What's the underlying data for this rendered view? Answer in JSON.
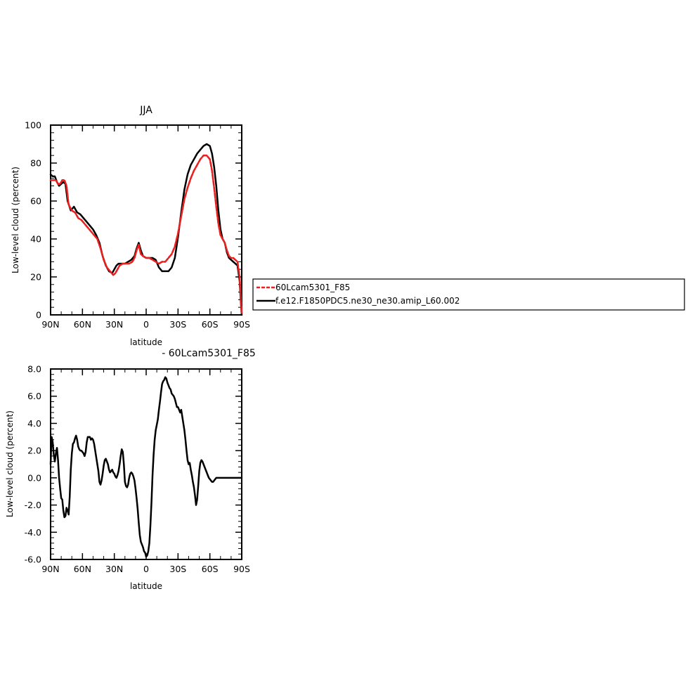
{
  "chart_data": [
    {
      "type": "line",
      "title": "JJA",
      "xlabel": "latitude",
      "ylabel": "Low-level cloud (percent)",
      "xlim": [
        -90,
        90
      ],
      "ylim": [
        0,
        100
      ],
      "x_ticks": [
        -90,
        -60,
        -30,
        0,
        30,
        60,
        90
      ],
      "x_tick_labels": [
        "90N",
        "60N",
        "30N",
        "0",
        "30S",
        "60S",
        "90S"
      ],
      "y_ticks": [
        0,
        20,
        40,
        60,
        80,
        100
      ],
      "y_tick_labels": [
        "0",
        "20",
        "40",
        "60",
        "80",
        "100"
      ],
      "grid": false,
      "legend_position": "right",
      "series": [
        {
          "name": "60Lcam5301_F85",
          "color": "#e8201f",
          "style": "dashed",
          "x": [
            -90,
            -87,
            -85,
            -83,
            -81,
            -79,
            -77,
            -75,
            -73,
            -70,
            -67,
            -64,
            -61,
            -58,
            -55,
            -52,
            -49,
            -46,
            -43,
            -40,
            -37,
            -34,
            -31,
            -29,
            -27,
            -25,
            -22,
            -19,
            -16,
            -13,
            -11,
            -9,
            -7,
            -5,
            -3,
            0,
            3,
            6,
            9,
            12,
            15,
            18,
            21,
            24,
            27,
            30,
            33,
            36,
            39,
            42,
            45,
            48,
            51,
            54,
            57,
            60,
            62,
            64,
            66,
            68,
            70,
            72,
            74,
            76,
            78,
            80,
            82,
            84,
            86,
            88,
            89,
            90
          ],
          "y": [
            71,
            71,
            71,
            69,
            69,
            71,
            71,
            68,
            58,
            55,
            54,
            51,
            50,
            48,
            46,
            44,
            42,
            40,
            35,
            29,
            25,
            23,
            21,
            22,
            24,
            26,
            27,
            27,
            27,
            28,
            30,
            34,
            37,
            32,
            31,
            30,
            30,
            29,
            28,
            27,
            28,
            28,
            30,
            32,
            36,
            43,
            52,
            61,
            67,
            72,
            76,
            79,
            82,
            84,
            84,
            82,
            76,
            67,
            57,
            48,
            42,
            40,
            38,
            34,
            31,
            30,
            30,
            29,
            28,
            20,
            10,
            1
          ]
        },
        {
          "name": "f.e12.F1850PDC5.ne30_ne30.amip_L60.002",
          "color": "#000000",
          "style": "solid",
          "x": [
            -90,
            -88,
            -86,
            -84,
            -82,
            -80,
            -78,
            -76,
            -74,
            -71,
            -68,
            -65,
            -62,
            -59,
            -56,
            -53,
            -50,
            -47,
            -44,
            -41,
            -38,
            -35,
            -32,
            -30,
            -28,
            -26,
            -23,
            -20,
            -17,
            -14,
            -11,
            -9,
            -7,
            -5,
            -3,
            0,
            3,
            6,
            9,
            12,
            15,
            18,
            21,
            24,
            27,
            30,
            33,
            36,
            39,
            42,
            45,
            48,
            51,
            54,
            57,
            60,
            62,
            64,
            66,
            68,
            70,
            72,
            74,
            76,
            78,
            80,
            82,
            84,
            86,
            88,
            89,
            90
          ],
          "y": [
            74,
            73,
            73,
            70,
            68,
            69,
            70,
            69,
            60,
            55,
            57,
            54,
            53,
            51,
            49,
            47,
            45,
            42,
            38,
            31,
            26,
            23,
            22,
            24,
            26,
            27,
            27,
            27,
            28,
            29,
            31,
            35,
            38,
            34,
            31,
            30,
            30,
            30,
            29,
            25,
            23,
            23,
            23,
            25,
            30,
            41,
            54,
            66,
            74,
            79,
            82,
            85,
            87,
            89,
            90,
            89,
            85,
            78,
            68,
            55,
            45,
            40,
            38,
            33,
            30,
            29,
            28,
            27,
            26,
            18,
            8,
            0
          ]
        }
      ]
    },
    {
      "type": "line",
      "title": "- 60Lcam5301_F85",
      "xlabel": "latitude",
      "ylabel": "Low-level cloud (percent)",
      "xlim": [
        -90,
        90
      ],
      "ylim": [
        -6,
        8
      ],
      "x_ticks": [
        -90,
        -60,
        -30,
        0,
        30,
        60,
        90
      ],
      "x_tick_labels": [
        "90N",
        "60N",
        "30N",
        "0",
        "30S",
        "60S",
        "90S"
      ],
      "y_ticks": [
        -6,
        -4,
        -2,
        0,
        2,
        4,
        6,
        8
      ],
      "y_tick_labels": [
        "-6.0",
        "-4.0",
        "-2.0",
        "0.0",
        "2.0",
        "4.0",
        "6.0",
        "8.0"
      ],
      "grid": false,
      "series": [
        {
          "color": "#000000",
          "style": "solid",
          "x": [
            -90,
            -89,
            -88,
            -87,
            -86,
            -85,
            -84,
            -83,
            -82,
            -81,
            -80,
            -79,
            -78,
            -77,
            -76,
            -75,
            -74,
            -73,
            -72,
            -71,
            -70,
            -69,
            -68,
            -67,
            -66,
            -65,
            -64,
            -63,
            -62,
            -61,
            -60,
            -59,
            -58,
            -57,
            -56,
            -55,
            -54,
            -53,
            -52,
            -51,
            -50,
            -49,
            -48,
            -47,
            -46,
            -45,
            -44,
            -43,
            -42,
            -41,
            -40,
            -39,
            -38,
            -37,
            -36,
            -35,
            -34,
            -33,
            -32,
            -31,
            -30,
            -29,
            -28,
            -27,
            -26,
            -25,
            -24,
            -23,
            -22,
            -21,
            -20,
            -19,
            -18,
            -17,
            -16,
            -15,
            -14,
            -13,
            -12,
            -11,
            -10,
            -9,
            -8,
            -7,
            -6,
            -5,
            -4,
            -3,
            -2,
            -1,
            0,
            1,
            2,
            3,
            4,
            5,
            6,
            7,
            8,
            9,
            10,
            11,
            12,
            13,
            14,
            15,
            16,
            17,
            18,
            19,
            20,
            21,
            22,
            23,
            24,
            25,
            26,
            27,
            28,
            29,
            30,
            31,
            32,
            33,
            34,
            35,
            36,
            37,
            38,
            39,
            40,
            41,
            42,
            43,
            44,
            45,
            46,
            47,
            48,
            49,
            50,
            51,
            52,
            53,
            54,
            55,
            56,
            57,
            58,
            59,
            60,
            61,
            62,
            63,
            64,
            65,
            66,
            67,
            68,
            69,
            70,
            71,
            72,
            73,
            74,
            75,
            76,
            77,
            78,
            79,
            80,
            81,
            82,
            83,
            84,
            85,
            86,
            87,
            88,
            89,
            90
          ],
          "y": [
            1.0,
            3.0,
            2.6,
            1.7,
            1.2,
            1.8,
            2.2,
            1.3,
            0.0,
            -0.8,
            -1.5,
            -1.6,
            -2.4,
            -2.9,
            -2.8,
            -2.2,
            -2.4,
            -2.7,
            -1.4,
            0.6,
            1.8,
            2.5,
            2.6,
            2.9,
            3.1,
            2.8,
            2.3,
            2.1,
            2.0,
            2.0,
            1.9,
            1.8,
            1.6,
            1.9,
            2.6,
            3.0,
            3.0,
            3.0,
            2.8,
            2.9,
            2.8,
            2.5,
            2.0,
            1.5,
            1.0,
            0.5,
            -0.3,
            -0.5,
            -0.2,
            0.3,
            0.9,
            1.3,
            1.4,
            1.2,
            1.0,
            0.6,
            0.4,
            0.5,
            0.6,
            0.4,
            0.3,
            0.1,
            0.0,
            0.2,
            0.5,
            1.0,
            1.6,
            2.1,
            1.9,
            1.0,
            -0.3,
            -0.6,
            -0.7,
            -0.5,
            0.0,
            0.3,
            0.4,
            0.3,
            0.1,
            -0.2,
            -0.8,
            -1.5,
            -2.3,
            -3.3,
            -4.2,
            -4.7,
            -4.9,
            -5.1,
            -5.4,
            -5.5,
            -5.8,
            -5.7,
            -5.4,
            -4.8,
            -3.5,
            -1.8,
            0.2,
            1.7,
            2.8,
            3.5,
            3.9,
            4.3,
            5.0,
            5.6,
            6.3,
            6.9,
            7.1,
            7.2,
            7.4,
            7.3,
            7.0,
            6.8,
            6.6,
            6.5,
            6.2,
            6.1,
            6.0,
            5.8,
            5.5,
            5.2,
            5.2,
            5.0,
            4.8,
            5.0,
            4.5,
            4.0,
            3.5,
            2.8,
            2.0,
            1.3,
            1.0,
            1.1,
            0.6,
            0.2,
            -0.3,
            -0.7,
            -1.3,
            -2.0,
            -1.6,
            -0.6,
            0.5,
            1.1,
            1.3,
            1.2,
            1.0,
            0.8,
            0.6,
            0.4,
            0.2,
            0.0,
            -0.1,
            -0.2,
            -0.3,
            -0.3,
            -0.2,
            -0.1,
            0.0,
            0.0,
            0.0,
            0.0,
            0.0,
            0.0,
            0.0,
            0.0,
            0.0,
            0.0,
            0.0,
            0.0,
            0.0,
            0.0,
            0.0,
            0.0,
            0.0,
            0.0,
            0.0,
            0.0,
            0.0,
            0.0,
            0.0,
            0.0,
            0.0
          ]
        }
      ]
    }
  ]
}
